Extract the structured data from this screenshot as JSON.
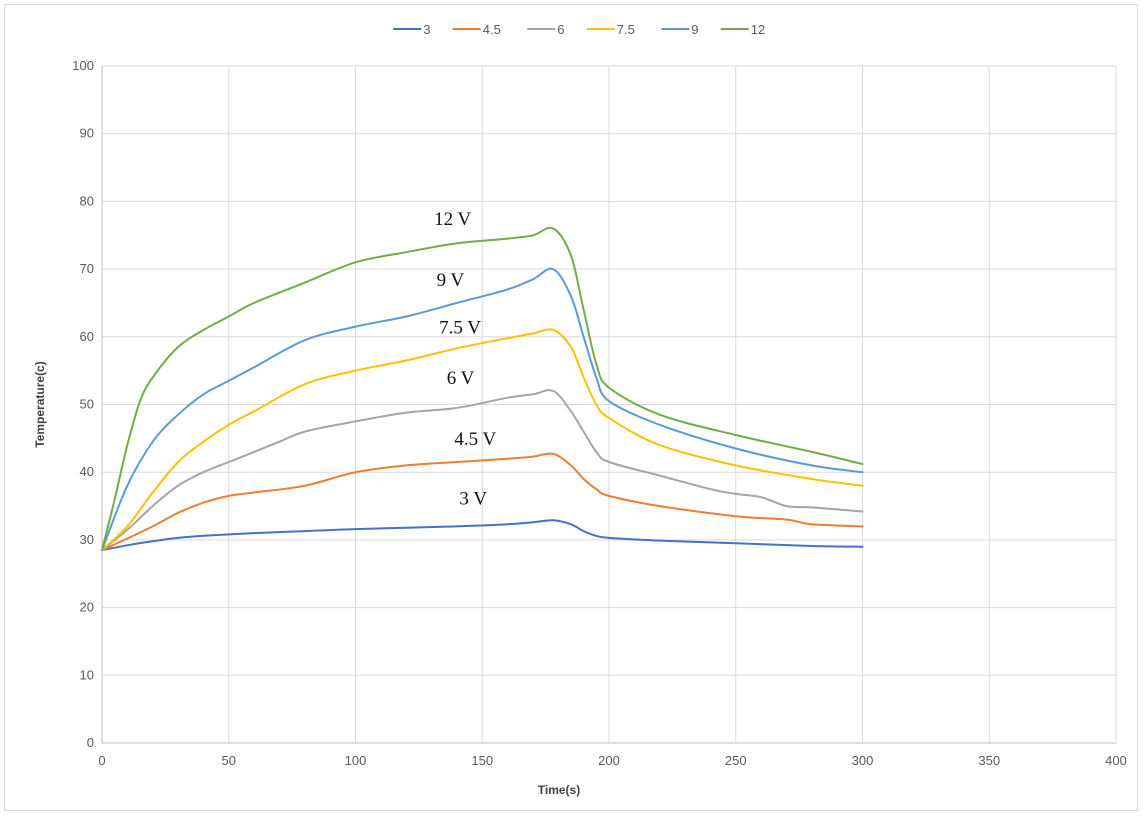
{
  "chart_data": {
    "type": "line",
    "xlabel": "Time(s)",
    "ylabel": "Temperature(c)",
    "xlim": [
      0,
      400
    ],
    "ylim": [
      0,
      100
    ],
    "xticks": [
      0,
      50,
      100,
      150,
      200,
      250,
      300,
      350,
      400
    ],
    "yticks": [
      0,
      10,
      20,
      30,
      40,
      50,
      60,
      70,
      80,
      90,
      100
    ],
    "grid": true,
    "legend_position": "top",
    "series": [
      {
        "name": "3",
        "color": "#4472C4",
        "x": [
          0,
          10,
          20,
          30,
          40,
          60,
          80,
          100,
          120,
          140,
          160,
          170,
          178,
          185,
          190,
          195,
          200,
          220,
          250,
          280,
          300
        ],
        "y": [
          28.5,
          29.2,
          29.8,
          30.3,
          30.6,
          31.0,
          31.3,
          31.6,
          31.8,
          32.0,
          32.3,
          32.6,
          32.9,
          32.3,
          31.3,
          30.6,
          30.3,
          29.9,
          29.5,
          29.1,
          29.0
        ]
      },
      {
        "name": "4.5",
        "color": "#ED7D31",
        "x": [
          0,
          10,
          20,
          30,
          40,
          50,
          60,
          80,
          100,
          120,
          140,
          160,
          170,
          178,
          185,
          190,
          195,
          200,
          220,
          250,
          270,
          280,
          300
        ],
        "y": [
          28.5,
          30.2,
          32.0,
          34.0,
          35.5,
          36.5,
          37.0,
          38.0,
          40.0,
          41.0,
          41.5,
          42.0,
          42.3,
          42.7,
          41.0,
          39.0,
          37.5,
          36.5,
          35.0,
          33.5,
          33.0,
          32.3,
          32.0
        ]
      },
      {
        "name": "6",
        "color": "#A5A5A5",
        "x": [
          0,
          10,
          20,
          30,
          40,
          50,
          60,
          70,
          80,
          100,
          120,
          140,
          160,
          170,
          178,
          185,
          190,
          195,
          200,
          220,
          240,
          250,
          260,
          270,
          280,
          300
        ],
        "y": [
          28.5,
          31.5,
          35.0,
          38.0,
          40.0,
          41.5,
          43.0,
          44.5,
          46.0,
          47.5,
          48.8,
          49.5,
          51.0,
          51.5,
          52.0,
          49.0,
          46.0,
          43.0,
          41.5,
          39.5,
          37.5,
          36.8,
          36.3,
          35.0,
          34.8,
          34.2
        ]
      },
      {
        "name": "7.5",
        "color": "#FFC000",
        "x": [
          0,
          10,
          20,
          30,
          40,
          50,
          60,
          80,
          100,
          120,
          140,
          160,
          170,
          178,
          185,
          190,
          195,
          200,
          220,
          250,
          280,
          300
        ],
        "y": [
          28.5,
          32.0,
          37.0,
          41.5,
          44.5,
          47.0,
          49.0,
          53.0,
          55.0,
          56.5,
          58.3,
          59.8,
          60.5,
          61.0,
          58.5,
          54.0,
          50.0,
          48.0,
          44.0,
          41.0,
          39.0,
          38.0
        ]
      },
      {
        "name": "9",
        "color": "#5B9BD5",
        "x": [
          0,
          10,
          20,
          30,
          40,
          50,
          60,
          80,
          100,
          120,
          140,
          160,
          170,
          178,
          185,
          190,
          195,
          200,
          220,
          250,
          280,
          300
        ],
        "y": [
          28.5,
          38.0,
          44.5,
          48.5,
          51.5,
          53.5,
          55.5,
          59.5,
          61.5,
          63.0,
          65.0,
          67.0,
          68.5,
          70.0,
          66.0,
          60.0,
          54.0,
          50.5,
          47.0,
          43.5,
          41.0,
          40.0
        ]
      },
      {
        "name": "12",
        "color": "#70AD47",
        "x": [
          0,
          5,
          10,
          15,
          20,
          30,
          40,
          50,
          60,
          80,
          100,
          120,
          140,
          160,
          170,
          178,
          185,
          190,
          195,
          200,
          220,
          250,
          280,
          300
        ],
        "y": [
          28.5,
          36.0,
          44.0,
          50.5,
          54.0,
          58.5,
          61.0,
          63.0,
          65.0,
          68.0,
          71.0,
          72.5,
          73.8,
          74.5,
          75.0,
          76.0,
          72.0,
          64.0,
          56.0,
          52.5,
          48.5,
          45.5,
          43.0,
          41.2
        ]
      }
    ],
    "annotations": [
      {
        "text": "12 V",
        "x": 131,
        "y": 76.5
      },
      {
        "text": "9 V",
        "x": 132,
        "y": 67.5
      },
      {
        "text": "7.5 V",
        "x": 133,
        "y": 60.5
      },
      {
        "text": "6 V",
        "x": 136,
        "y": 53.0
      },
      {
        "text": "4.5 V",
        "x": 139,
        "y": 44.0
      },
      {
        "text": "3 V",
        "x": 141,
        "y": 35.2
      }
    ]
  }
}
